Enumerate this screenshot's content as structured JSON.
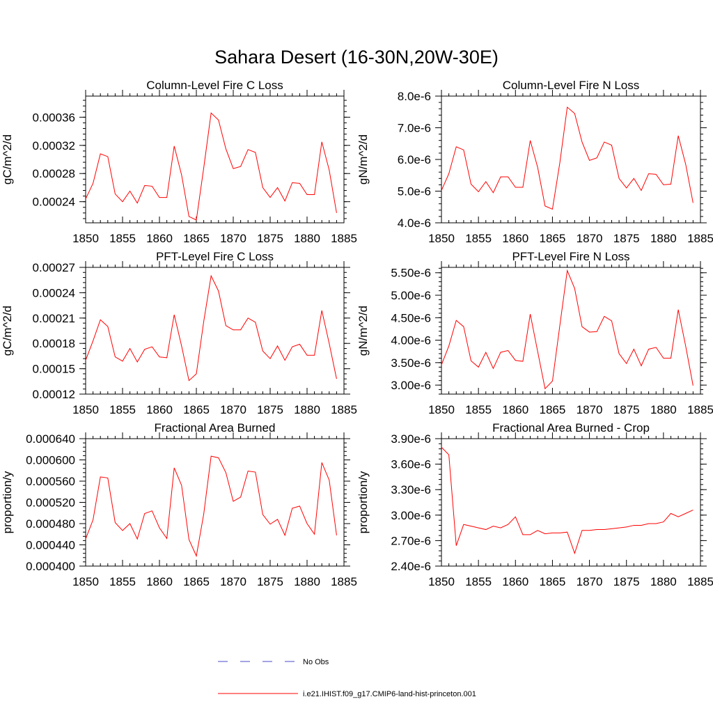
{
  "figure_title": "Sahara Desert (16-30N,20W-30E)",
  "colors": {
    "model": "#ff0000",
    "obs": "#4a4ac8",
    "axis": "#000000"
  },
  "legend": {
    "obs_label": "No Obs",
    "model_label": "i.e21.IHIST.f09_g17.CMIP6-land-hist-princeton.001"
  },
  "chart_data": [
    {
      "type": "line",
      "title": "Column-Level Fire C Loss",
      "xlabel": "",
      "ylabel": "gC/m^2/d",
      "xlim": [
        1850,
        1885
      ],
      "ylim": [
        0.00021,
        0.00039
      ],
      "xticks": [
        1850,
        1855,
        1860,
        1865,
        1870,
        1875,
        1880,
        1885
      ],
      "xtick_labels": [
        "1850",
        "1855",
        "1860",
        "1865",
        "1870",
        "1875",
        "1880",
        "1885"
      ],
      "yticks": [
        0.00024,
        0.00028,
        0.00032,
        0.00036
      ],
      "ytick_labels": [
        "0.00024",
        "0.00028",
        "0.00032",
        "0.00036"
      ],
      "grid": false,
      "x": [
        1850,
        1851,
        1852,
        1853,
        1854,
        1855,
        1856,
        1857,
        1858,
        1859,
        1860,
        1861,
        1862,
        1863,
        1864,
        1865,
        1866,
        1867,
        1868,
        1869,
        1870,
        1871,
        1872,
        1873,
        1874,
        1875,
        1876,
        1877,
        1878,
        1879,
        1880,
        1881,
        1882,
        1883,
        1884
      ],
      "series": [
        {
          "values": [
            0.000244,
            0.000266,
            0.000308,
            0.000304,
            0.000251,
            0.00024,
            0.000255,
            0.000238,
            0.000263,
            0.000262,
            0.000246,
            0.000246,
            0.000319,
            0.000278,
            0.000219,
            0.000214,
            0.000288,
            0.000366,
            0.000356,
            0.000315,
            0.000287,
            0.00029,
            0.000314,
            0.00031,
            0.00026,
            0.000246,
            0.00026,
            0.000241,
            0.000267,
            0.000266,
            0.00025,
            0.00025,
            0.000325,
            0.000285,
            0.000224
          ]
        }
      ]
    },
    {
      "type": "line",
      "title": "Column-Level Fire N Loss",
      "xlabel": "",
      "ylabel": "gN/m^2/d",
      "xlim": [
        1850,
        1885
      ],
      "ylim": [
        4e-06,
        8e-06
      ],
      "xticks": [
        1850,
        1855,
        1860,
        1865,
        1870,
        1875,
        1880,
        1885
      ],
      "xtick_labels": [
        "1850",
        "1855",
        "1860",
        "1865",
        "1870",
        "1875",
        "1880",
        "1885"
      ],
      "yticks": [
        4e-06,
        5e-06,
        6e-06,
        7e-06,
        8e-06
      ],
      "ytick_labels": [
        "4.0e-6",
        "5.0e-6",
        "6.0e-6",
        "7.0e-6",
        "8.0e-6"
      ],
      "grid": false,
      "x": [
        1850,
        1851,
        1852,
        1853,
        1854,
        1855,
        1856,
        1857,
        1858,
        1859,
        1860,
        1861,
        1862,
        1863,
        1864,
        1865,
        1866,
        1867,
        1868,
        1869,
        1870,
        1871,
        1872,
        1873,
        1874,
        1875,
        1876,
        1877,
        1878,
        1879,
        1880,
        1881,
        1882,
        1883,
        1884
      ],
      "series": [
        {
          "values": [
            5.02e-06,
            5.55e-06,
            6.4e-06,
            6.3e-06,
            5.22e-06,
            4.98e-06,
            5.3e-06,
            4.95e-06,
            5.45e-06,
            5.45e-06,
            5.12e-06,
            5.12e-06,
            6.6e-06,
            5.75e-06,
            4.53e-06,
            4.43e-06,
            5.9e-06,
            7.65e-06,
            7.45e-06,
            6.55e-06,
            5.97e-06,
            6.05e-06,
            6.55e-06,
            6.45e-06,
            5.4e-06,
            5.1e-06,
            5.4e-06,
            5.02e-06,
            5.55e-06,
            5.53e-06,
            5.2e-06,
            5.22e-06,
            6.75e-06,
            5.85e-06,
            4.63e-06
          ]
        }
      ]
    },
    {
      "type": "line",
      "title": "PFT-Level Fire C Loss",
      "xlabel": "",
      "ylabel": "gC/m^2/d",
      "xlim": [
        1850,
        1885
      ],
      "ylim": [
        0.00012,
        0.00027
      ],
      "xticks": [
        1850,
        1855,
        1860,
        1865,
        1870,
        1875,
        1880,
        1885
      ],
      "xtick_labels": [
        "1850",
        "1855",
        "1860",
        "1865",
        "1870",
        "1875",
        "1880",
        "1885"
      ],
      "yticks": [
        0.00012,
        0.00015,
        0.00018,
        0.00021,
        0.00024,
        0.00027
      ],
      "ytick_labels": [
        "0.00012",
        "0.00015",
        "0.00018",
        "0.00021",
        "0.00024",
        "0.00027"
      ],
      "grid": false,
      "x": [
        1850,
        1851,
        1852,
        1853,
        1854,
        1855,
        1856,
        1857,
        1858,
        1859,
        1860,
        1861,
        1862,
        1863,
        1864,
        1865,
        1866,
        1867,
        1868,
        1869,
        1870,
        1871,
        1872,
        1873,
        1874,
        1875,
        1876,
        1877,
        1878,
        1879,
        1880,
        1881,
        1882,
        1883,
        1884
      ],
      "series": [
        {
          "values": [
            0.00016,
            0.000183,
            0.000208,
            0.0002,
            0.000164,
            0.000159,
            0.000174,
            0.000158,
            0.000173,
            0.000176,
            0.000164,
            0.000163,
            0.000214,
            0.000177,
            0.000136,
            0.000144,
            0.000206,
            0.00026,
            0.000242,
            0.000201,
            0.000196,
            0.000196,
            0.00021,
            0.000205,
            0.000171,
            0.000162,
            0.000177,
            0.00016,
            0.000176,
            0.000179,
            0.000166,
            0.000166,
            0.000219,
            0.00018,
            0.000138
          ]
        }
      ]
    },
    {
      "type": "line",
      "title": "PFT-Level Fire N Loss",
      "xlabel": "",
      "ylabel": "gN/m^2/d",
      "xlim": [
        1850,
        1885
      ],
      "ylim": [
        2.8e-06,
        5.62e-06
      ],
      "xticks": [
        1850,
        1855,
        1860,
        1865,
        1870,
        1875,
        1880,
        1885
      ],
      "xtick_labels": [
        "1850",
        "1855",
        "1860",
        "1865",
        "1870",
        "1875",
        "1880",
        "1885"
      ],
      "yticks": [
        3e-06,
        3.5e-06,
        4e-06,
        4.5e-06,
        5e-06,
        5.5e-06
      ],
      "ytick_labels": [
        "3.00e-6",
        "3.50e-6",
        "4.00e-6",
        "4.50e-6",
        "5.00e-6",
        "5.50e-6"
      ],
      "grid": false,
      "x": [
        1850,
        1851,
        1852,
        1853,
        1854,
        1855,
        1856,
        1857,
        1858,
        1859,
        1860,
        1861,
        1862,
        1863,
        1864,
        1865,
        1866,
        1867,
        1868,
        1869,
        1870,
        1871,
        1872,
        1873,
        1874,
        1875,
        1876,
        1877,
        1878,
        1879,
        1880,
        1881,
        1882,
        1883,
        1884
      ],
      "series": [
        {
          "values": [
            3.45e-06,
            3.87e-06,
            4.44e-06,
            4.3e-06,
            3.54e-06,
            3.4e-06,
            3.73e-06,
            3.37e-06,
            3.73e-06,
            3.77e-06,
            3.55e-06,
            3.53e-06,
            4.58e-06,
            3.75e-06,
            2.92e-06,
            3.09e-06,
            4.33e-06,
            5.55e-06,
            5.15e-06,
            4.3e-06,
            4.18e-06,
            4.19e-06,
            4.53e-06,
            4.43e-06,
            3.7e-06,
            3.48e-06,
            3.8e-06,
            3.43e-06,
            3.8e-06,
            3.84e-06,
            3.6e-06,
            3.6e-06,
            4.68e-06,
            3.87e-06,
            2.99e-06
          ]
        }
      ]
    },
    {
      "type": "line",
      "title": "Fractional Area Burned",
      "xlabel": "",
      "ylabel": "proportion/y",
      "xlim": [
        1850,
        1885
      ],
      "ylim": [
        0.0004,
        0.00064
      ],
      "xticks": [
        1850,
        1855,
        1860,
        1865,
        1870,
        1875,
        1880,
        1885
      ],
      "xtick_labels": [
        "1850",
        "1855",
        "1860",
        "1865",
        "1870",
        "1875",
        "1880",
        "1885"
      ],
      "yticks": [
        0.0004,
        0.00044,
        0.00048,
        0.00052,
        0.00056,
        0.0006,
        0.00064
      ],
      "ytick_labels": [
        "0.000400",
        "0.000440",
        "0.000480",
        "0.000520",
        "0.000560",
        "0.000600",
        "0.000640"
      ],
      "grid": false,
      "x": [
        1850,
        1851,
        1852,
        1853,
        1854,
        1855,
        1856,
        1857,
        1858,
        1859,
        1860,
        1861,
        1862,
        1863,
        1864,
        1865,
        1866,
        1867,
        1868,
        1869,
        1870,
        1871,
        1872,
        1873,
        1874,
        1875,
        1876,
        1877,
        1878,
        1879,
        1880,
        1881,
        1882,
        1883,
        1884
      ],
      "series": [
        {
          "values": [
            0.000451,
            0.000487,
            0.000568,
            0.000566,
            0.000482,
            0.000467,
            0.00048,
            0.000451,
            0.000499,
            0.000504,
            0.000472,
            0.000452,
            0.000585,
            0.000552,
            0.00045,
            0.000419,
            0.000498,
            0.000607,
            0.000604,
            0.000576,
            0.000522,
            0.00053,
            0.000579,
            0.000577,
            0.000497,
            0.000479,
            0.000488,
            0.000458,
            0.000509,
            0.000513,
            0.00048,
            0.00046,
            0.000595,
            0.000562,
            0.000458
          ]
        }
      ]
    },
    {
      "type": "line",
      "title": "Fractional Area Burned - Crop",
      "xlabel": "",
      "ylabel": "proportion/y",
      "xlim": [
        1850,
        1885
      ],
      "ylim": [
        2.4e-06,
        3.9e-06
      ],
      "xticks": [
        1850,
        1855,
        1860,
        1865,
        1870,
        1875,
        1880,
        1885
      ],
      "xtick_labels": [
        "1850",
        "1855",
        "1860",
        "1865",
        "1870",
        "1875",
        "1880",
        "1885"
      ],
      "yticks": [
        2.4e-06,
        2.7e-06,
        3e-06,
        3.3e-06,
        3.6e-06,
        3.9e-06
      ],
      "ytick_labels": [
        "2.40e-6",
        "2.70e-6",
        "3.00e-6",
        "3.30e-6",
        "3.60e-6",
        "3.90e-6"
      ],
      "grid": false,
      "x": [
        1850,
        1851,
        1852,
        1853,
        1854,
        1855,
        1856,
        1857,
        1858,
        1859,
        1860,
        1861,
        1862,
        1863,
        1864,
        1865,
        1866,
        1867,
        1868,
        1869,
        1870,
        1871,
        1872,
        1873,
        1874,
        1875,
        1876,
        1877,
        1878,
        1879,
        1880,
        1881,
        1882,
        1883,
        1884
      ],
      "series": [
        {
          "values": [
            3.8e-06,
            3.71e-06,
            2.64e-06,
            2.89e-06,
            2.87e-06,
            2.85e-06,
            2.83e-06,
            2.87e-06,
            2.85e-06,
            2.89e-06,
            2.98e-06,
            2.77e-06,
            2.77e-06,
            2.82e-06,
            2.78e-06,
            2.79e-06,
            2.79e-06,
            2.8e-06,
            2.55e-06,
            2.82e-06,
            2.82e-06,
            2.83e-06,
            2.83e-06,
            2.84e-06,
            2.85e-06,
            2.86e-06,
            2.88e-06,
            2.88e-06,
            2.9e-06,
            2.9e-06,
            2.92e-06,
            3.02e-06,
            2.98e-06,
            3.02e-06,
            3.06e-06
          ]
        }
      ]
    }
  ]
}
